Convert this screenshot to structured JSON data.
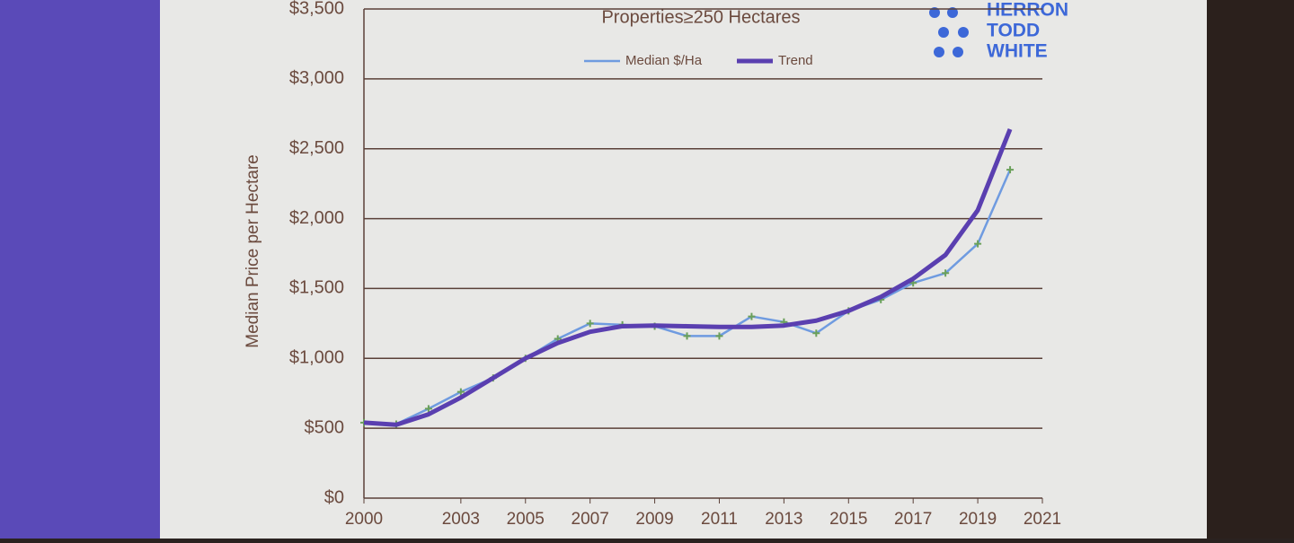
{
  "chart_data": {
    "type": "line",
    "subtitle": "Properties≥250 Hectares",
    "y_label": "Median Price per Hectare",
    "x": [
      2000,
      2001,
      2002,
      2003,
      2004,
      2005,
      2006,
      2007,
      2008,
      2009,
      2010,
      2011,
      2012,
      2013,
      2014,
      2015,
      2016,
      2017,
      2018,
      2019,
      2020
    ],
    "series": [
      {
        "name": "Median $/Ha",
        "color": "#6f9be0",
        "values": [
          540,
          530,
          640,
          760,
          860,
          1000,
          1140,
          1250,
          1240,
          1230,
          1160,
          1160,
          1300,
          1260,
          1180,
          1340,
          1420,
          1540,
          1610,
          1820,
          2350
        ]
      },
      {
        "name": "Trend",
        "color": "#5a3fb0",
        "values": [
          540,
          525,
          600,
          720,
          860,
          1000,
          1110,
          1190,
          1230,
          1235,
          1230,
          1225,
          1225,
          1235,
          1270,
          1340,
          1440,
          1570,
          1740,
          2060,
          2640
        ]
      }
    ],
    "xlim": [
      2000,
      2021
    ],
    "xticks": [
      2000,
      2003,
      2005,
      2007,
      2009,
      2011,
      2013,
      2015,
      2017,
      2019,
      2021
    ],
    "ylim": [
      0,
      3500
    ],
    "yticks": [
      {
        "value": 0,
        "label": "$0"
      },
      {
        "value": 500,
        "label": "$500"
      },
      {
        "value": 1000,
        "label": "$1,000"
      },
      {
        "value": 1500,
        "label": "$1,500"
      },
      {
        "value": 2000,
        "label": "$2,000"
      },
      {
        "value": 2500,
        "label": "$2,500"
      },
      {
        "value": 3000,
        "label": "$3,000"
      },
      {
        "value": 3500,
        "label": "$3,500"
      }
    ],
    "grid": true,
    "logo": [
      "HERRON",
      "TODD",
      "WHITE"
    ]
  }
}
